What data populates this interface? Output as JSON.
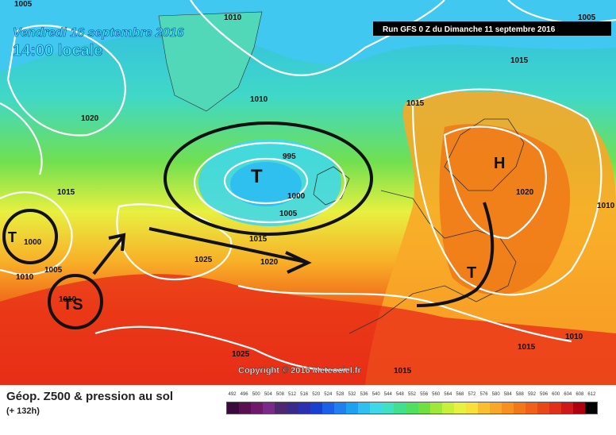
{
  "map": {
    "date_label": "Vendredi 16 septembre 2016",
    "time_label": "14:00 locale",
    "run_label": "Run GFS 0 Z du Dimanche 11 septembre 2016",
    "copyright": "Copyright © 2016 Meteociel.fr",
    "pressure_labels": [
      "1005",
      "1010",
      "1005",
      "1020",
      "1015",
      "1010",
      "1015",
      "1015",
      "995",
      "1000",
      "1005",
      "1015",
      "1020",
      "1020",
      "1025",
      "1010",
      "1005",
      "1000",
      "1010",
      "1025",
      "1015",
      "1015",
      "1010",
      "1010"
    ],
    "system_labels": {
      "low_main": "T",
      "high": "H",
      "low_europe": "T",
      "low_west": "T",
      "storm": "TS"
    },
    "colors": {
      "deep_low": "#38c0f0",
      "mid": "#e8f040",
      "high": "#f07818",
      "very_high": "#e01818"
    }
  },
  "legend": {
    "title": "Géop. Z500 & pression au sol",
    "subtitle": "(+ 132h)",
    "scale_labels": [
      "492",
      "496",
      "500",
      "504",
      "508",
      "512",
      "516",
      "520",
      "524",
      "528",
      "532",
      "536",
      "540",
      "544",
      "548",
      "552",
      "556",
      "560",
      "564",
      "568",
      "572",
      "576",
      "580",
      "584",
      "588",
      "592",
      "596",
      "600",
      "604",
      "608",
      "612"
    ],
    "scale_colors": [
      "#3a0a3a",
      "#5a1050",
      "#70186a",
      "#7a2a88",
      "#502870",
      "#3a2a8a",
      "#2a30b0",
      "#1a40d0",
      "#1a60e8",
      "#2080f0",
      "#20a0f0",
      "#30c0f0",
      "#40d8e8",
      "#40e0c0",
      "#40e090",
      "#50e060",
      "#70e040",
      "#a0e838",
      "#c8f038",
      "#e8f040",
      "#f8e038",
      "#f8c030",
      "#f8a828",
      "#f89020",
      "#f07818",
      "#f06018",
      "#e84818",
      "#e03018",
      "#d01818",
      "#b00010",
      "#000000"
    ]
  }
}
